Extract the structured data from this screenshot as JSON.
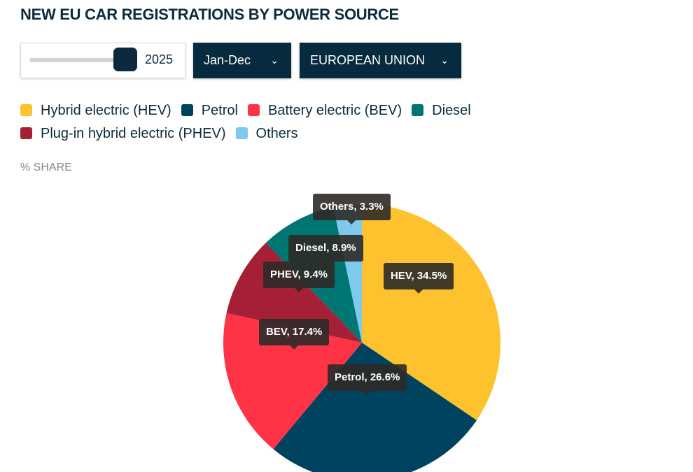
{
  "title": "NEW EU CAR REGISTRATIONS BY POWER SOURCE",
  "controls": {
    "year": "2025",
    "period": "Jan-Dec",
    "region": "EUROPEAN UNION"
  },
  "chart_data": {
    "type": "pie",
    "ylabel": "% SHARE",
    "categories": [
      "Hybrid electric (HEV)",
      "Petrol",
      "Battery electric (BEV)",
      "Plug-in hybrid electric (PHEV)",
      "Diesel",
      "Others"
    ],
    "short_labels": [
      "HEV, 34.5%",
      "Petrol, 26.6%",
      "BEV, 17.4%",
      "PHEV, 9.4%",
      "Diesel, 8.9%",
      "Others, 3.3%"
    ],
    "values": [
      34.5,
      26.6,
      17.4,
      9.4,
      8.9,
      3.3
    ],
    "colors": [
      "#fdc22e",
      "#00435e",
      "#ff3346",
      "#a51f37",
      "#007673",
      "#7ec9ec"
    ],
    "legend_order": [
      0,
      1,
      2,
      4,
      3,
      5
    ],
    "legend": "top-left"
  }
}
